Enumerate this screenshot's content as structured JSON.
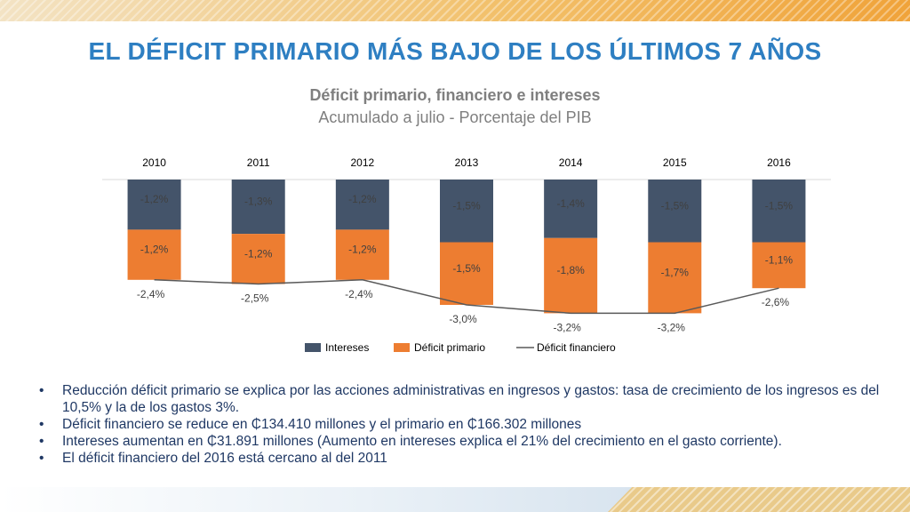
{
  "slide": {
    "title": "EL DÉFICIT PRIMARIO MÁS BAJO DE LOS ÚLTIMOS 7 AÑOS"
  },
  "chart_data": {
    "type": "bar",
    "stacked": true,
    "title": "Déficit primario, financiero e intereses",
    "subtitle": "Acumulado a  julio -  Porcentaje del PIB",
    "categories": [
      "2010",
      "2011",
      "2012",
      "2013",
      "2014",
      "2015",
      "2016"
    ],
    "series": [
      {
        "name": "Intereses",
        "kind": "bar",
        "color": "#44546a",
        "values": [
          -1.2,
          -1.3,
          -1.2,
          -1.5,
          -1.4,
          -1.5,
          -1.5
        ],
        "labels": [
          "-1,2%",
          "-1,3%",
          "-1,2%",
          "-1,5%",
          "-1,4%",
          "-1,5%",
          "-1,5%"
        ]
      },
      {
        "name": "Déficit primario",
        "kind": "bar",
        "color": "#ed7d31",
        "values": [
          -1.2,
          -1.2,
          -1.2,
          -1.5,
          -1.8,
          -1.7,
          -1.1
        ],
        "labels": [
          "-1,2%",
          "-1,2%",
          "-1,2%",
          "-1,5%",
          "-1,8%",
          "-1,7%",
          "-1,1%"
        ]
      },
      {
        "name": "Déficit financiero",
        "kind": "line",
        "color": "#595959",
        "values": [
          -2.4,
          -2.5,
          -2.4,
          -3.0,
          -3.2,
          -3.2,
          -2.6
        ],
        "labels": [
          "-2,4%",
          "-2,5%",
          "-2,4%",
          "-3,0%",
          "-3,2%",
          "-3,2%",
          "-2,6%"
        ]
      }
    ],
    "legend_position": "bottom",
    "grid": false
  },
  "bullets": [
    "Reducción déficit primario se explica por las acciones administrativas en ingresos y gastos: tasa de crecimiento de los ingresos es del 10,5% y la de los gastos 3%.",
    "Déficit financiero se  reduce en ₵134.410 millones  y el primario en ₵166.302 millones",
    "Intereses aumentan en ₵31.891 millones (Aumento en intereses explica el 21% del crecimiento en el gasto corriente).",
    "El déficit financiero del 2016 está cercano al del 2011"
  ]
}
